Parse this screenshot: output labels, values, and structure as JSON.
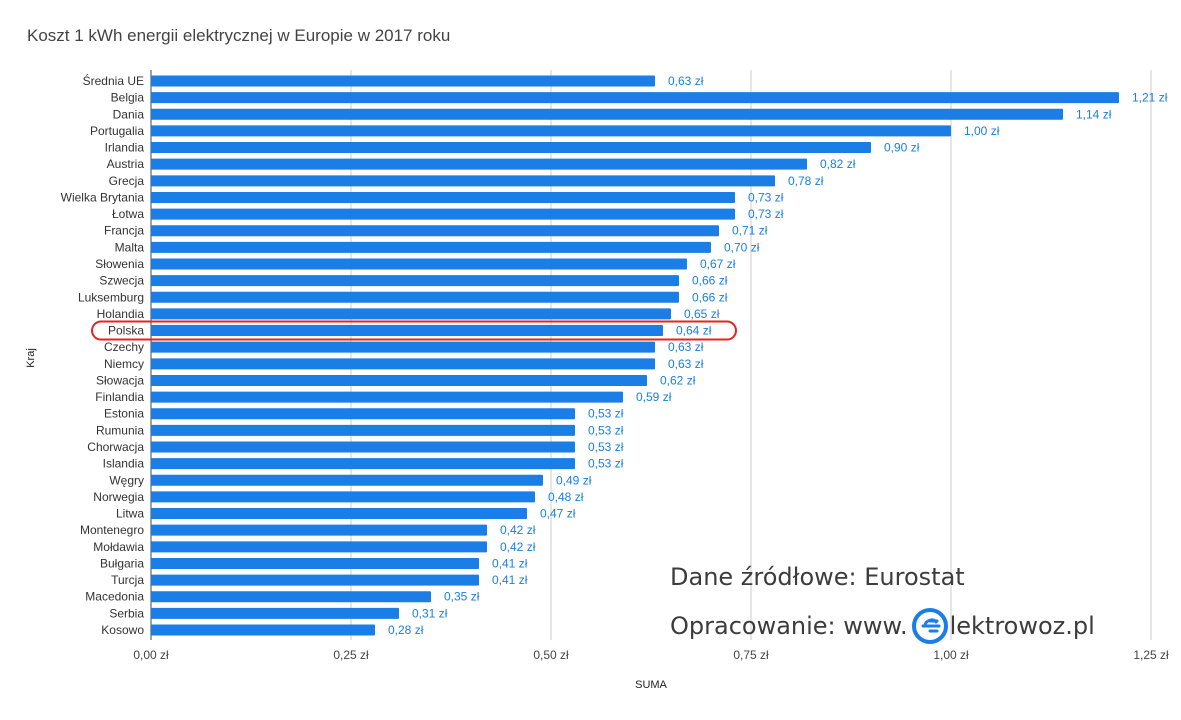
{
  "chart_data": {
    "type": "bar",
    "orientation": "horizontal",
    "title": "Koszt 1 kWh energii elektrycznej w Europie w 2017 roku",
    "xlabel": "SUMA",
    "ylabel": "Kraj",
    "xlim": [
      0,
      1.25
    ],
    "xticks": [
      "0,00 zł",
      "0,25 zł",
      "0,50 zł",
      "0,75 zł",
      "1,00 zł",
      "1,25 zł"
    ],
    "grid": true,
    "highlighted_category": "Polska",
    "bar_color": "#1a7ee6",
    "label_color": "#1a7ee6",
    "highlight_color": "#e52421",
    "categories": [
      "Średnia UE",
      "Belgia",
      "Dania",
      "Portugalia",
      "Irlandia",
      "Austria",
      "Grecja",
      "Wielka Brytania",
      "Łotwa",
      "Francja",
      "Malta",
      "Słowenia",
      "Szwecja",
      "Luksemburg",
      "Holandia",
      "Polska",
      "Czechy",
      "Niemcy",
      "Słowacja",
      "Finlandia",
      "Estonia",
      "Rumunia",
      "Chorwacja",
      "Islandia",
      "Węgry",
      "Norwegia",
      "Litwa",
      "Montenegro",
      "Mołdawia",
      "Bułgaria",
      "Turcja",
      "Macedonia",
      "Serbia",
      "Kosowo"
    ],
    "values": [
      0.63,
      1.21,
      1.14,
      1.0,
      0.9,
      0.82,
      0.78,
      0.73,
      0.73,
      0.71,
      0.7,
      0.67,
      0.66,
      0.66,
      0.65,
      0.64,
      0.63,
      0.63,
      0.62,
      0.59,
      0.53,
      0.53,
      0.53,
      0.53,
      0.49,
      0.48,
      0.47,
      0.42,
      0.42,
      0.41,
      0.41,
      0.35,
      0.31,
      0.28
    ],
    "value_labels": [
      "0,63 zł",
      "1,21 zł",
      "1,14 zł",
      "1,00 zł",
      "0,90 zł",
      "0,82 zł",
      "0,78 zł",
      "0,73 zł",
      "0,73 zł",
      "0,71 zł",
      "0,70 zł",
      "0,67 zł",
      "0,66 zł",
      "0,66 zł",
      "0,65 zł",
      "0,64 zł",
      "0,63 zł",
      "0,63 zł",
      "0,62 zł",
      "0,59 zł",
      "0,53 zł",
      "0,53 zł",
      "0,53 zł",
      "0,53 zł",
      "0,49 zł",
      "0,48 zł",
      "0,47 zł",
      "0,42 zł",
      "0,42 zł",
      "0,41 zł",
      "0,41 zł",
      "0,35 zł",
      "0,31 zł",
      "0,28 zł"
    ]
  },
  "watermark": {
    "source": "Dane źródłowe: Eurostat",
    "credit_prefix": "Opracowanie: www.",
    "credit_suffix": "lektrowoz.pl",
    "logo_icon": "plug-e-icon",
    "logo_color": "#1a7ee6"
  }
}
